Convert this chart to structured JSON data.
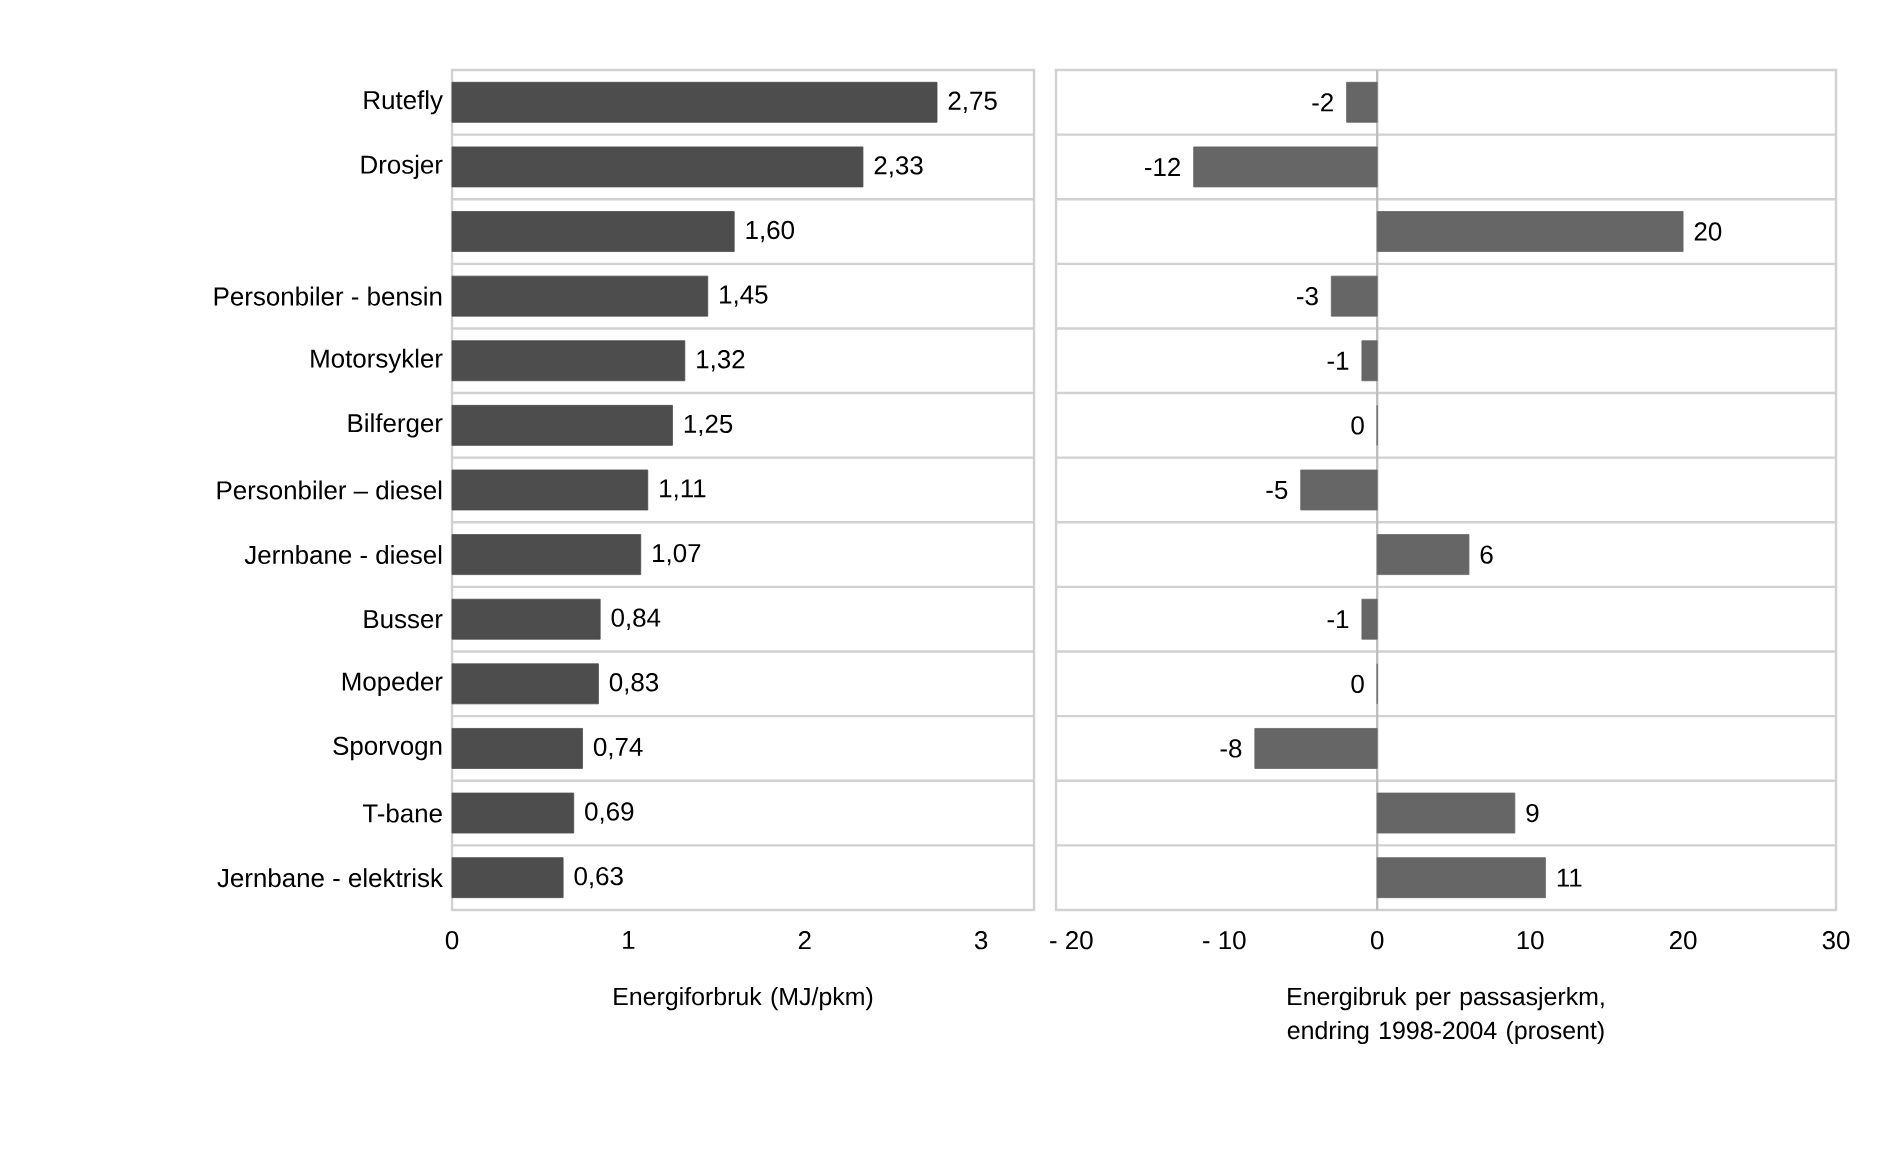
{
  "chart_data": [
    {
      "type": "bar",
      "orientation": "horizontal",
      "categories": [
        "Rutefly",
        "Drosjer",
        null,
        "Personbiler - bensin",
        "Motorsykler",
        "Bilferger",
        "Personbiler – diesel",
        "Jernbane - diesel",
        "Busser",
        "Mopeder",
        "Sporvogn",
        "T-bane",
        "Jernbane - elektrisk"
      ],
      "values": [
        2.75,
        2.33,
        1.6,
        1.45,
        1.32,
        1.25,
        1.11,
        1.07,
        0.84,
        0.83,
        0.74,
        0.69,
        0.63
      ],
      "value_labels": [
        "2,75",
        "2,33",
        "1,60",
        "1,45",
        "1,32",
        "1,25",
        "1,11",
        "1,07",
        "0,84",
        "0,83",
        "0,74",
        "0,69",
        "0,63"
      ],
      "color": "#4d4d4d",
      "xlabel": "Energiforbruk (MJ/pkm)",
      "xlim": [
        0,
        3.3
      ],
      "xticks": [
        0,
        1,
        2,
        3
      ],
      "grid": "y"
    },
    {
      "type": "bar",
      "orientation": "horizontal",
      "categories": [
        null,
        null,
        null,
        null,
        null,
        null,
        null,
        null,
        null,
        null,
        null,
        null,
        null
      ],
      "values": [
        -2,
        -12,
        20,
        -3,
        -1,
        0,
        -5,
        6,
        -1,
        0,
        -8,
        9,
        11
      ],
      "value_labels": [
        "-2",
        "-12",
        "20",
        "-3",
        "-1",
        "0",
        "-5",
        "6",
        "-1",
        "0",
        "-8",
        "9",
        "11"
      ],
      "color": "#666666",
      "xlabel": "Energibruk per passasjerkm, endring 1998-2004 (prosent)",
      "xlim": [
        -21,
        30
      ],
      "xticks": [
        {
          "value": -20,
          "label": "- 20"
        },
        {
          "value": -10,
          "label": "- 10"
        },
        0,
        10,
        20,
        30
      ],
      "grid": "y"
    }
  ]
}
